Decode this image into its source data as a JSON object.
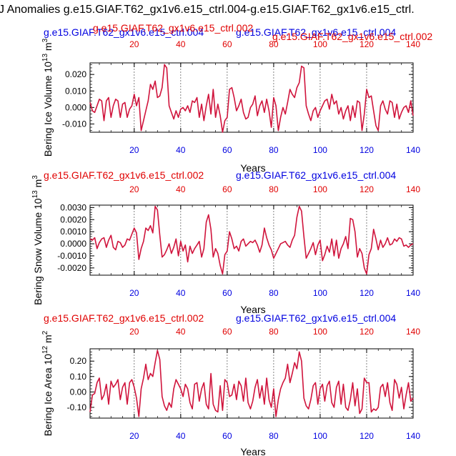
{
  "figure_title": "J Anomalies g.e15.GIAF.T62_gx1v6.e15_ctrl.004-g.e15.GIAF.T62_gx1v6.e15_ctrl.",
  "colors": {
    "line": "#d0143c",
    "top_red": "#e00000",
    "top_blue": "#0000e0",
    "bottom_ticks": "#0000e0",
    "top_ticks": "#e00000"
  },
  "chart_data": [
    {
      "type": "line",
      "title_left": "g.e15.GIAF.T62_gx1v6.e15_ctrl.004",
      "title_right": "g.e15.GIAF.T62_gx1v6.e15_ctrl.004",
      "title_left_overlay": "g.e15.GIAF.T62_gx1v6.e15_ctrl.002",
      "title_right_overlay": "g.e15.GIAF.T62_gx1v6.e15_ctrl.002",
      "ylabel": "Bering Ice Volume 10",
      "ylabel_exp": "13",
      "ylabel_unit": "m",
      "ylabel_unit_exp": "3",
      "xlabel": "Years",
      "xlim": [
        1,
        140
      ],
      "ylim": [
        -0.015,
        0.027
      ],
      "yticks": [
        -0.01,
        0.0,
        0.01,
        0.02
      ],
      "ytick_labels": [
        "-0.010",
        "0.000",
        "0.010",
        "0.020"
      ],
      "xticks": [
        20,
        40,
        60,
        80,
        100,
        120,
        140
      ],
      "xtick_labels": [
        "20",
        "40",
        "60",
        "80",
        "100",
        "120",
        "140"
      ],
      "x": [
        1,
        2,
        3,
        4,
        5,
        6,
        7,
        8,
        9,
        10,
        11,
        12,
        13,
        14,
        15,
        16,
        17,
        18,
        19,
        20,
        21,
        22,
        23,
        24,
        25,
        26,
        27,
        28,
        29,
        30,
        31,
        32,
        33,
        34,
        35,
        36,
        37,
        38,
        39,
        40,
        41,
        42,
        43,
        44,
        45,
        46,
        47,
        48,
        49,
        50,
        51,
        52,
        53,
        54,
        55,
        56,
        57,
        58,
        59,
        60,
        61,
        62,
        63,
        64,
        65,
        66,
        67,
        68,
        69,
        70,
        71,
        72,
        73,
        74,
        75,
        76,
        77,
        78,
        79,
        80,
        81,
        82,
        83,
        84,
        85,
        86,
        87,
        88,
        89,
        90,
        91,
        92,
        93,
        94,
        95,
        96,
        97,
        98,
        99,
        100,
        101,
        102,
        103,
        104,
        105,
        106,
        107,
        108,
        109,
        110,
        111,
        112,
        113,
        114,
        115,
        116,
        117,
        118,
        119,
        120,
        121,
        122,
        123,
        124,
        125,
        126,
        127,
        128,
        129,
        130,
        131,
        132,
        133,
        134,
        135,
        136,
        137,
        138,
        139,
        140
      ],
      "values": [
        0.003,
        -0.002,
        -0.003,
        0.001,
        0.005,
        0.004,
        -0.008,
        0.004,
        0.006,
        -0.006,
        0.001,
        0.005,
        0.004,
        -0.006,
        0.002,
        0.003,
        -0.006,
        -0.001,
        0.001,
        0.008,
        0.001,
        0.006,
        -0.014,
        -0.008,
        -0.002,
        0.004,
        0.014,
        0.011,
        0.016,
        0.006,
        0.007,
        0.012,
        0.026,
        0.024,
        0.001,
        -0.003,
        -0.007,
        -0.002,
        -0.006,
        -0.001,
        0.0,
        -0.002,
        0.001,
        -0.003,
        0.004,
        0.003,
        0.006,
        -0.006,
        0.002,
        -0.008,
        0.001,
        0.008,
        -0.004,
        0.011,
        -0.006,
        0.002,
        -0.005,
        -0.015,
        -0.008,
        -0.006,
        0.011,
        0.012,
        0.006,
        -0.002,
        0.001,
        0.005,
        -0.003,
        -0.007,
        -0.006,
        0.0,
        0.002,
        0.007,
        -0.005,
        0.001,
        0.004,
        -0.003,
        0.005,
        -0.002,
        -0.012,
        0.006,
        0.001,
        -0.014,
        -0.006,
        0.0,
        -0.004,
        0.003,
        0.011,
        0.008,
        0.006,
        0.012,
        0.015,
        0.025,
        0.024,
        0.001,
        -0.004,
        -0.008,
        -0.002,
        0.0,
        -0.006,
        -0.002,
        0.001,
        0.004,
        0.005,
        -0.001,
        0.008,
        0.002,
        0.004,
        -0.004,
        0.0,
        -0.007,
        -0.002,
        0.001,
        -0.008,
        0.001,
        -0.006,
        0.004,
        0.003,
        -0.014,
        -0.004,
        0.011,
        0.006,
        0.007,
        -0.002,
        -0.011,
        -0.014,
        0.001,
        0.004,
        -0.001,
        -0.004,
        0.004,
        0.003,
        -0.006,
        0.002,
        -0.007,
        -0.003,
        0.0,
        0.001,
        -0.003,
        0.004,
        -0.005
      ]
    },
    {
      "type": "line",
      "title_left": "g.e15.GIAF.T62_gx1v6.e15_ctrl.002",
      "title_right": "g.e15.GIAF.T62_gx1v6.e15_ctrl.004",
      "ylabel": "Bering Snow Volume 10",
      "ylabel_exp": "13",
      "ylabel_unit": "m",
      "ylabel_unit_exp": "3",
      "xlabel": "Years",
      "xlim": [
        1,
        140
      ],
      "ylim": [
        -0.0026,
        0.0032
      ],
      "yticks": [
        -0.002,
        -0.001,
        0.0,
        0.001,
        0.002,
        0.003
      ],
      "ytick_labels": [
        "-0.0020",
        "-0.0010",
        "0.0000",
        "0.0010",
        "0.0020",
        "0.0030"
      ],
      "xticks": [
        20,
        40,
        60,
        80,
        100,
        120,
        140
      ],
      "xtick_labels": [
        "20",
        "40",
        "60",
        "80",
        "100",
        "120",
        "140"
      ],
      "x": [
        1,
        2,
        3,
        4,
        5,
        6,
        7,
        8,
        9,
        10,
        11,
        12,
        13,
        14,
        15,
        16,
        17,
        18,
        19,
        20,
        21,
        22,
        23,
        24,
        25,
        26,
        27,
        28,
        29,
        30,
        31,
        32,
        33,
        34,
        35,
        36,
        37,
        38,
        39,
        40,
        41,
        42,
        43,
        44,
        45,
        46,
        47,
        48,
        49,
        50,
        51,
        52,
        53,
        54,
        55,
        56,
        57,
        58,
        59,
        60,
        61,
        62,
        63,
        64,
        65,
        66,
        67,
        68,
        69,
        70,
        71,
        72,
        73,
        74,
        75,
        76,
        77,
        78,
        79,
        80,
        81,
        82,
        83,
        84,
        85,
        86,
        87,
        88,
        89,
        90,
        91,
        92,
        93,
        94,
        95,
        96,
        97,
        98,
        99,
        100,
        101,
        102,
        103,
        104,
        105,
        106,
        107,
        108,
        109,
        110,
        111,
        112,
        113,
        114,
        115,
        116,
        117,
        118,
        119,
        120,
        121,
        122,
        123,
        124,
        125,
        126,
        127,
        128,
        129,
        130,
        131,
        132,
        133,
        134,
        135,
        136,
        137,
        138,
        139,
        140
      ],
      "values": [
        0.0004,
        0.0003,
        0.0005,
        -0.0004,
        0.0001,
        0.0004,
        0.0005,
        -0.0003,
        0.0003,
        0.0007,
        -0.0003,
        -0.0005,
        0.0002,
        0.0001,
        -0.0003,
        -0.0001,
        0.0004,
        0.0003,
        0.0008,
        0.0013,
        0.0009,
        -0.0013,
        -0.0004,
        0.0002,
        0.0013,
        0.0011,
        0.0015,
        0.0009,
        0.0031,
        0.0028,
        0.0007,
        -0.0011,
        -0.0009,
        -0.0005,
        0.0,
        -0.0008,
        -0.0003,
        0.0004,
        -0.001,
        0.0002,
        -0.0006,
        -0.0001,
        -0.0015,
        -0.0002,
        -0.0008,
        -0.0004,
        -0.0001,
        0.0002,
        -0.0011,
        -0.0004,
        0.0018,
        0.0024,
        0.0012,
        -0.0011,
        -0.0004,
        -0.0008,
        -0.0018,
        -0.0025,
        -0.0009,
        -0.0006,
        0.001,
        0.0004,
        -0.0004,
        -0.0002,
        -0.0006,
        0.0002,
        0.0004,
        -0.0002,
        0.0,
        0.0002,
        0.0001,
        0.0003,
        -0.0001,
        -0.0007,
        -0.0001,
        0.0013,
        0.0005,
        -0.0001,
        -0.0005,
        -0.0012,
        -0.0008,
        -0.0004,
        0.0,
        0.0001,
        0.0002,
        -0.0001,
        -0.0003,
        0.0003,
        0.0007,
        0.0022,
        0.0031,
        0.0027,
        0.0006,
        -0.0012,
        -0.0008,
        -0.0004,
        0.0001,
        -0.0009,
        -0.0001,
        0.0003,
        -0.0014,
        -0.0009,
        -0.0002,
        -0.0007,
        0.0004,
        -0.001,
        0.0003,
        -0.0012,
        -0.0004,
        0.0,
        0.0006,
        -0.0004,
        0.0021,
        0.002,
        0.001,
        -0.0011,
        -0.0004,
        -0.0008,
        -0.002,
        -0.0025,
        -0.0009,
        -0.0004,
        0.0012,
        0.0004,
        -0.0005,
        0.0003,
        -0.0003,
        0.0,
        0.0005,
        -0.0001,
        0.0,
        0.0004,
        0.0002,
        0.0005,
        0.0004,
        -0.0002,
        -0.0001,
        -0.0003,
        -0.0001,
        0.0
      ]
    },
    {
      "type": "line",
      "title_left": "g.e15.GIAF.T62_gx1v6.e15_ctrl.002",
      "title_right": "g.e15.GIAF.T62_gx1v6.e15_ctrl.004",
      "ylabel": "Bering Ice Area 10",
      "ylabel_exp": "12",
      "ylabel_unit": "m",
      "ylabel_unit_exp": "2",
      "xlabel": "Years",
      "xlim": [
        1,
        140
      ],
      "ylim": [
        -0.17,
        0.28
      ],
      "yticks": [
        -0.1,
        0.0,
        0.1,
        0.2
      ],
      "ytick_labels": [
        "-0.10",
        "0.00",
        "0.10",
        "0.20"
      ],
      "xticks": [
        20,
        40,
        60,
        80,
        100,
        120,
        140
      ],
      "xtick_labels": [
        "20",
        "40",
        "60",
        "80",
        "100",
        "120",
        "140"
      ],
      "x": [
        1,
        2,
        3,
        4,
        5,
        6,
        7,
        8,
        9,
        10,
        11,
        12,
        13,
        14,
        15,
        16,
        17,
        18,
        19,
        20,
        21,
        22,
        23,
        24,
        25,
        26,
        27,
        28,
        29,
        30,
        31,
        32,
        33,
        34,
        35,
        36,
        37,
        38,
        39,
        40,
        41,
        42,
        43,
        44,
        45,
        46,
        47,
        48,
        49,
        50,
        51,
        52,
        53,
        54,
        55,
        56,
        57,
        58,
        59,
        60,
        61,
        62,
        63,
        64,
        65,
        66,
        67,
        68,
        69,
        70,
        71,
        72,
        73,
        74,
        75,
        76,
        77,
        78,
        79,
        80,
        81,
        82,
        83,
        84,
        85,
        86,
        87,
        88,
        89,
        90,
        91,
        92,
        93,
        94,
        95,
        96,
        97,
        98,
        99,
        100,
        101,
        102,
        103,
        104,
        105,
        106,
        107,
        108,
        109,
        110,
        111,
        112,
        113,
        114,
        115,
        116,
        117,
        118,
        119,
        120,
        121,
        122,
        123,
        124,
        125,
        126,
        127,
        128,
        129,
        130,
        131,
        132,
        133,
        134,
        135,
        136,
        137,
        138,
        139,
        140
      ],
      "values": [
        -0.13,
        -0.02,
        -0.01,
        0.06,
        0.09,
        -0.05,
        -0.02,
        0.05,
        -0.08,
        0.07,
        0.03,
        0.05,
        0.08,
        -0.05,
        0.03,
        0.06,
        -0.08,
        0.06,
        0.08,
        0.03,
        -0.04,
        -0.16,
        0.02,
        0.09,
        0.18,
        0.08,
        0.12,
        0.1,
        0.19,
        0.27,
        0.21,
        -0.03,
        -0.09,
        -0.12,
        -0.07,
        -0.1,
        0.02,
        0.08,
        0.05,
        0.02,
        -0.03,
        0.05,
        0.02,
        -0.07,
        -0.11,
        0.05,
        0.06,
        -0.06,
        0.02,
        0.06,
        -0.08,
        -0.11,
        0.12,
        -0.08,
        -0.12,
        -0.13,
        0.04,
        -0.12,
        0.08,
        0.06,
        -0.03,
        -0.02,
        0.05,
        -0.05,
        0.07,
        0.04,
        -0.06,
        0.09,
        -0.07,
        -0.11,
        -0.06,
        0.03,
        0.08,
        -0.04,
        0.04,
        -0.08,
        0.09,
        -0.05,
        -0.1,
        0.02,
        -0.16,
        -0.05,
        0.02,
        0.06,
        0.09,
        0.18,
        0.06,
        0.12,
        0.19,
        0.15,
        0.26,
        0.2,
        -0.04,
        -0.09,
        -0.11,
        -0.05,
        0.04,
        0.06,
        -0.08,
        0.02,
        0.05,
        -0.06,
        0.04,
        0.07,
        -0.07,
        -0.1,
        0.03,
        0.07,
        -0.08,
        0.05,
        -0.1,
        -0.12,
        -0.05,
        0.06,
        -0.09,
        0.02,
        -0.14,
        -0.11,
        0.09,
        0.06,
        0.06,
        -0.13,
        -0.11,
        -0.12,
        -0.1,
        0.03,
        0.05,
        -0.03,
        0.06,
        -0.07,
        -0.12,
        0.08,
        0.05,
        -0.04,
        0.03,
        -0.11,
        -0.02,
        0.06,
        -0.06,
        -0.04
      ]
    }
  ]
}
